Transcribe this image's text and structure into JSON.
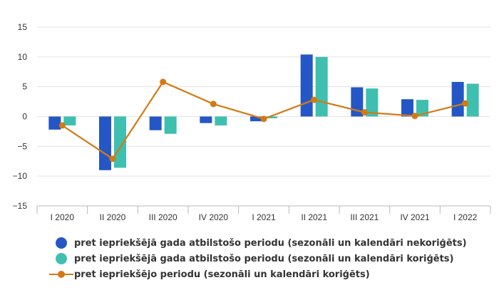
{
  "colors": {
    "series1": "#2457c5",
    "series2": "#3fbfb0",
    "series3": "#d37a14",
    "grid": "#e3e3e3",
    "axis": "#b8b8b8"
  },
  "legend": {
    "items": [
      {
        "label": "pret iepriekšējā gada atbilstošo periodu (sezonāli un kalendāri nekoriģēts)",
        "icon": "circle"
      },
      {
        "label": "pret iepriekšējā gada atbilstošo periodu (sezonāli un kalendāri koriģēts)",
        "icon": "circle"
      },
      {
        "label": "pret iepriekšējo periodu (sezonāli un kalendāri koriģēts)",
        "icon": "line-with-marker"
      }
    ]
  },
  "chart_data": {
    "type": "bar",
    "categories": [
      "I 2020",
      "II 2020",
      "III 2020",
      "IV 2020",
      "I 2021",
      "II 2021",
      "III 2021",
      "IV 2021",
      "I 2022"
    ],
    "ylim": [
      -15,
      15
    ],
    "yticks": [
      15,
      10,
      5,
      0,
      -5,
      -10,
      -15
    ],
    "grid": true,
    "legend_position": "bottom",
    "series": [
      {
        "name": "pret iepriekšējā gada atbilstošo periodu (sezonāli un kalendāri nekoriģēts)",
        "type": "bar",
        "values": [
          -2.2,
          -9.0,
          -2.3,
          -1.1,
          -0.8,
          10.4,
          4.9,
          2.9,
          5.8
        ]
      },
      {
        "name": "pret iepriekšējā gada atbilstošo periodu (sezonāli un kalendāri koriģēts)",
        "type": "bar",
        "values": [
          -1.5,
          -8.6,
          -2.9,
          -1.5,
          -0.3,
          10.0,
          4.7,
          2.8,
          5.5
        ]
      },
      {
        "name": "pret iepriekšējo periodu (sezonāli un kalendāri koriģēts)",
        "type": "line",
        "values": [
          -1.5,
          -7.1,
          5.8,
          2.1,
          -0.4,
          2.8,
          0.7,
          0.1,
          2.2
        ]
      }
    ]
  }
}
